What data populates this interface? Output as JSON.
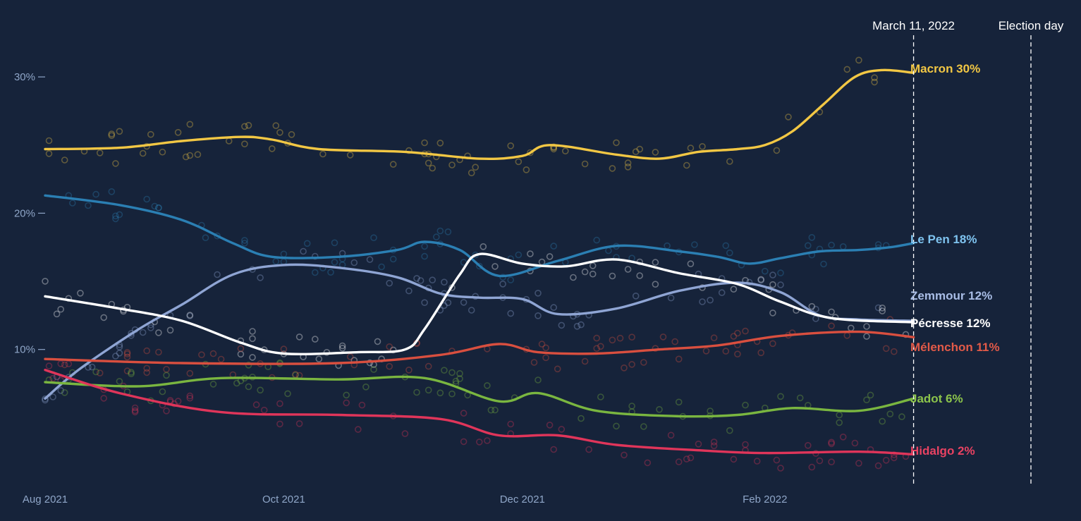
{
  "chart_data": {
    "type": "line",
    "title": "",
    "xlabel": "",
    "ylabel": "",
    "x_range": [
      "2021-08-01",
      "2022-04-10"
    ],
    "ylim": [
      0,
      33
    ],
    "y_ticks": [
      {
        "value": 10,
        "label": "10%"
      },
      {
        "value": 20,
        "label": "20%"
      },
      {
        "value": 30,
        "label": "30%"
      }
    ],
    "x_ticks": [
      {
        "date": "2021-08-01",
        "label": "Aug 2021"
      },
      {
        "date": "2021-10-01",
        "label": "Oct 2021"
      },
      {
        "date": "2021-12-01",
        "label": "Dec 2021"
      },
      {
        "date": "2022-02-01",
        "label": "Feb 2022"
      }
    ],
    "markers": [
      {
        "date": "2022-03-11",
        "label": "March 11, 2022"
      },
      {
        "date": "2022-04-10",
        "label": "Election day"
      }
    ],
    "grid": false,
    "legend": "inline labels at right end of lines",
    "series": [
      {
        "name": "Macron",
        "end_label": "Macron 30%",
        "color": "#f2c744",
        "points": [
          [
            "2021-08-01",
            24.7
          ],
          [
            "2021-08-20",
            24.8
          ],
          [
            "2021-09-05",
            25.3
          ],
          [
            "2021-09-20",
            25.6
          ],
          [
            "2021-09-28",
            25.4
          ],
          [
            "2021-10-10",
            24.7
          ],
          [
            "2021-11-01",
            24.5
          ],
          [
            "2021-11-20",
            24.0
          ],
          [
            "2021-12-01",
            24.2
          ],
          [
            "2021-12-08",
            25.0
          ],
          [
            "2021-12-25",
            24.3
          ],
          [
            "2022-01-05",
            24.0
          ],
          [
            "2022-01-15",
            24.5
          ],
          [
            "2022-01-25",
            24.7
          ],
          [
            "2022-02-01",
            25.0
          ],
          [
            "2022-02-08",
            26.0
          ],
          [
            "2022-02-16",
            28.0
          ],
          [
            "2022-02-24",
            30.0
          ],
          [
            "2022-03-03",
            30.5
          ],
          [
            "2022-03-11",
            30.3
          ]
        ]
      },
      {
        "name": "Le Pen",
        "end_label": "Le Pen 18%",
        "color": "#2b7fb3",
        "label_color": "#7fc4f0",
        "points": [
          [
            "2021-08-01",
            21.3
          ],
          [
            "2021-08-20",
            20.6
          ],
          [
            "2021-09-05",
            19.5
          ],
          [
            "2021-09-18",
            17.8
          ],
          [
            "2021-09-28",
            16.8
          ],
          [
            "2021-10-15",
            16.8
          ],
          [
            "2021-10-30",
            17.3
          ],
          [
            "2021-11-06",
            17.9
          ],
          [
            "2021-11-15",
            17.3
          ],
          [
            "2021-11-25",
            15.4
          ],
          [
            "2021-12-10",
            16.5
          ],
          [
            "2021-12-25",
            17.6
          ],
          [
            "2022-01-10",
            17.2
          ],
          [
            "2022-01-20",
            16.8
          ],
          [
            "2022-01-28",
            16.3
          ],
          [
            "2022-02-05",
            16.7
          ],
          [
            "2022-02-15",
            17.2
          ],
          [
            "2022-02-25",
            17.3
          ],
          [
            "2022-03-05",
            17.5
          ],
          [
            "2022-03-11",
            17.8
          ]
        ]
      },
      {
        "name": "Zemmour",
        "end_label": "Zemmour 12%",
        "color": "#8fa5d4",
        "label_color": "#a9bde6",
        "points": [
          [
            "2021-08-01",
            6.4
          ],
          [
            "2021-08-10",
            8.6
          ],
          [
            "2021-08-25",
            11.5
          ],
          [
            "2021-09-05",
            13.3
          ],
          [
            "2021-09-18",
            15.5
          ],
          [
            "2021-10-01",
            16.2
          ],
          [
            "2021-10-15",
            16.0
          ],
          [
            "2021-10-30",
            15.3
          ],
          [
            "2021-11-10",
            14.1
          ],
          [
            "2021-11-20",
            13.8
          ],
          [
            "2021-12-01",
            13.7
          ],
          [
            "2021-12-10",
            12.6
          ],
          [
            "2021-12-25",
            13.0
          ],
          [
            "2022-01-10",
            14.3
          ],
          [
            "2022-01-25",
            14.9
          ],
          [
            "2022-02-05",
            14.2
          ],
          [
            "2022-02-15",
            12.5
          ],
          [
            "2022-02-25",
            12.2
          ],
          [
            "2022-03-11",
            12.1
          ]
        ]
      },
      {
        "name": "Pécresse",
        "end_label": "Pécresse 12%",
        "color": "#ffffff",
        "label_color": "#ffffff",
        "points": [
          [
            "2021-08-01",
            13.9
          ],
          [
            "2021-08-20",
            13.0
          ],
          [
            "2021-09-05",
            12.1
          ],
          [
            "2021-09-20",
            10.5
          ],
          [
            "2021-10-01",
            9.7
          ],
          [
            "2021-10-20",
            9.8
          ],
          [
            "2021-11-01",
            10.0
          ],
          [
            "2021-11-06",
            11.5
          ],
          [
            "2021-11-15",
            15.5
          ],
          [
            "2021-11-20",
            17.0
          ],
          [
            "2021-12-01",
            16.3
          ],
          [
            "2021-12-12",
            16.1
          ],
          [
            "2021-12-25",
            16.6
          ],
          [
            "2022-01-10",
            15.6
          ],
          [
            "2022-01-25",
            14.8
          ],
          [
            "2022-02-05",
            13.5
          ],
          [
            "2022-02-18",
            12.3
          ],
          [
            "2022-03-11",
            12.0
          ]
        ]
      },
      {
        "name": "Mélenchon",
        "end_label": "Mélenchon 11%",
        "color": "#d94f3f",
        "label_color": "#e25a48",
        "points": [
          [
            "2021-08-01",
            9.3
          ],
          [
            "2021-09-05",
            9.0
          ],
          [
            "2021-10-15",
            9.0
          ],
          [
            "2021-11-10",
            9.6
          ],
          [
            "2021-11-25",
            10.4
          ],
          [
            "2021-12-05",
            9.8
          ],
          [
            "2021-12-20",
            9.7
          ],
          [
            "2022-01-05",
            10.0
          ],
          [
            "2022-01-20",
            10.3
          ],
          [
            "2022-02-05",
            11.0
          ],
          [
            "2022-02-25",
            11.3
          ],
          [
            "2022-03-11",
            10.9
          ]
        ]
      },
      {
        "name": "Jadot",
        "end_label": "Jadot 6%",
        "color": "#7ab640",
        "label_color": "#8cc44b",
        "points": [
          [
            "2021-08-01",
            7.6
          ],
          [
            "2021-08-25",
            7.3
          ],
          [
            "2021-09-15",
            7.9
          ],
          [
            "2021-10-15",
            7.8
          ],
          [
            "2021-11-06",
            7.9
          ],
          [
            "2021-11-25",
            6.2
          ],
          [
            "2021-12-05",
            6.8
          ],
          [
            "2021-12-20",
            5.5
          ],
          [
            "2022-01-10",
            5.1
          ],
          [
            "2022-01-25",
            5.2
          ],
          [
            "2022-02-08",
            5.7
          ],
          [
            "2022-02-25",
            5.5
          ],
          [
            "2022-03-11",
            6.4
          ]
        ]
      },
      {
        "name": "Hidalgo",
        "end_label": "Hidalgo 2%",
        "color": "#e0355a",
        "label_color": "#e94262",
        "points": [
          [
            "2021-08-01",
            8.5
          ],
          [
            "2021-08-20",
            6.8
          ],
          [
            "2021-09-15",
            5.4
          ],
          [
            "2021-10-15",
            5.2
          ],
          [
            "2021-11-10",
            4.9
          ],
          [
            "2021-11-25",
            3.7
          ],
          [
            "2021-12-10",
            3.7
          ],
          [
            "2021-12-25",
            3.0
          ],
          [
            "2022-01-15",
            2.6
          ],
          [
            "2022-02-01",
            2.4
          ],
          [
            "2022-02-25",
            2.5
          ],
          [
            "2022-03-11",
            2.3
          ]
        ]
      }
    ]
  }
}
